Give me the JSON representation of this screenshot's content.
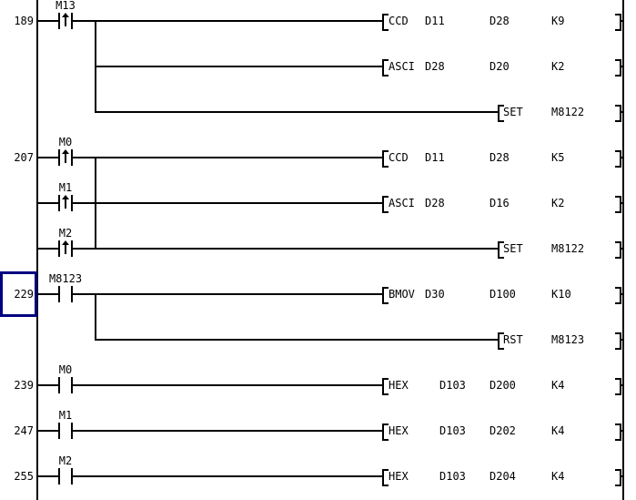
{
  "colors": {
    "background": "#ffffff",
    "line": "#000000",
    "cursor_outline": "#000080"
  },
  "ladder": {
    "rungs": [
      {
        "step": "189",
        "selected": false,
        "rows": [
          {
            "contact": {
              "label": "M13",
              "edge": "rising"
            },
            "instruction": {
              "op": "CCD",
              "params": [
                "D11",
                "D28",
                "K9"
              ],
              "position": "main"
            }
          },
          {
            "contact": null,
            "instruction": {
              "op": "ASCI",
              "params": [
                "D28",
                "D20",
                "K2"
              ],
              "position": "main"
            }
          },
          {
            "contact": null,
            "instruction": {
              "op": "SET",
              "params": [
                "M8122"
              ],
              "position": "right"
            }
          }
        ]
      },
      {
        "step": "207",
        "selected": false,
        "rows": [
          {
            "contact": {
              "label": "M0",
              "edge": "rising"
            },
            "instruction": {
              "op": "CCD",
              "params": [
                "D11",
                "D28",
                "K5"
              ],
              "position": "main"
            }
          },
          {
            "contact": {
              "label": "M1",
              "edge": "rising"
            },
            "instruction": {
              "op": "ASCI",
              "params": [
                "D28",
                "D16",
                "K2"
              ],
              "position": "main"
            }
          },
          {
            "contact": {
              "label": "M2",
              "edge": "rising"
            },
            "instruction": {
              "op": "SET",
              "params": [
                "M8122"
              ],
              "position": "right"
            }
          }
        ]
      },
      {
        "step": "229",
        "selected": true,
        "rows": [
          {
            "contact": {
              "label": "M8123",
              "edge": "none"
            },
            "instruction": {
              "op": "BMOV",
              "params": [
                "D30",
                "D100",
                "K10"
              ],
              "position": "main"
            }
          },
          {
            "contact": null,
            "instruction": {
              "op": "RST",
              "params": [
                "M8123"
              ],
              "position": "right"
            }
          }
        ]
      },
      {
        "step": "239",
        "selected": false,
        "rows": [
          {
            "contact": {
              "label": "M0",
              "edge": "none"
            },
            "instruction": {
              "op": "HEX",
              "params": [
                "D103",
                "D200",
                "K4"
              ],
              "position": "main"
            }
          }
        ]
      },
      {
        "step": "247",
        "selected": false,
        "rows": [
          {
            "contact": {
              "label": "M1",
              "edge": "none"
            },
            "instruction": {
              "op": "HEX",
              "params": [
                "D103",
                "D202",
                "K4"
              ],
              "position": "main"
            }
          }
        ]
      },
      {
        "step": "255",
        "selected": false,
        "rows": [
          {
            "contact": {
              "label": "M2",
              "edge": "none"
            },
            "instruction": {
              "op": "HEX",
              "params": [
                "D103",
                "D204",
                "K4"
              ],
              "position": "main"
            }
          }
        ]
      }
    ]
  }
}
